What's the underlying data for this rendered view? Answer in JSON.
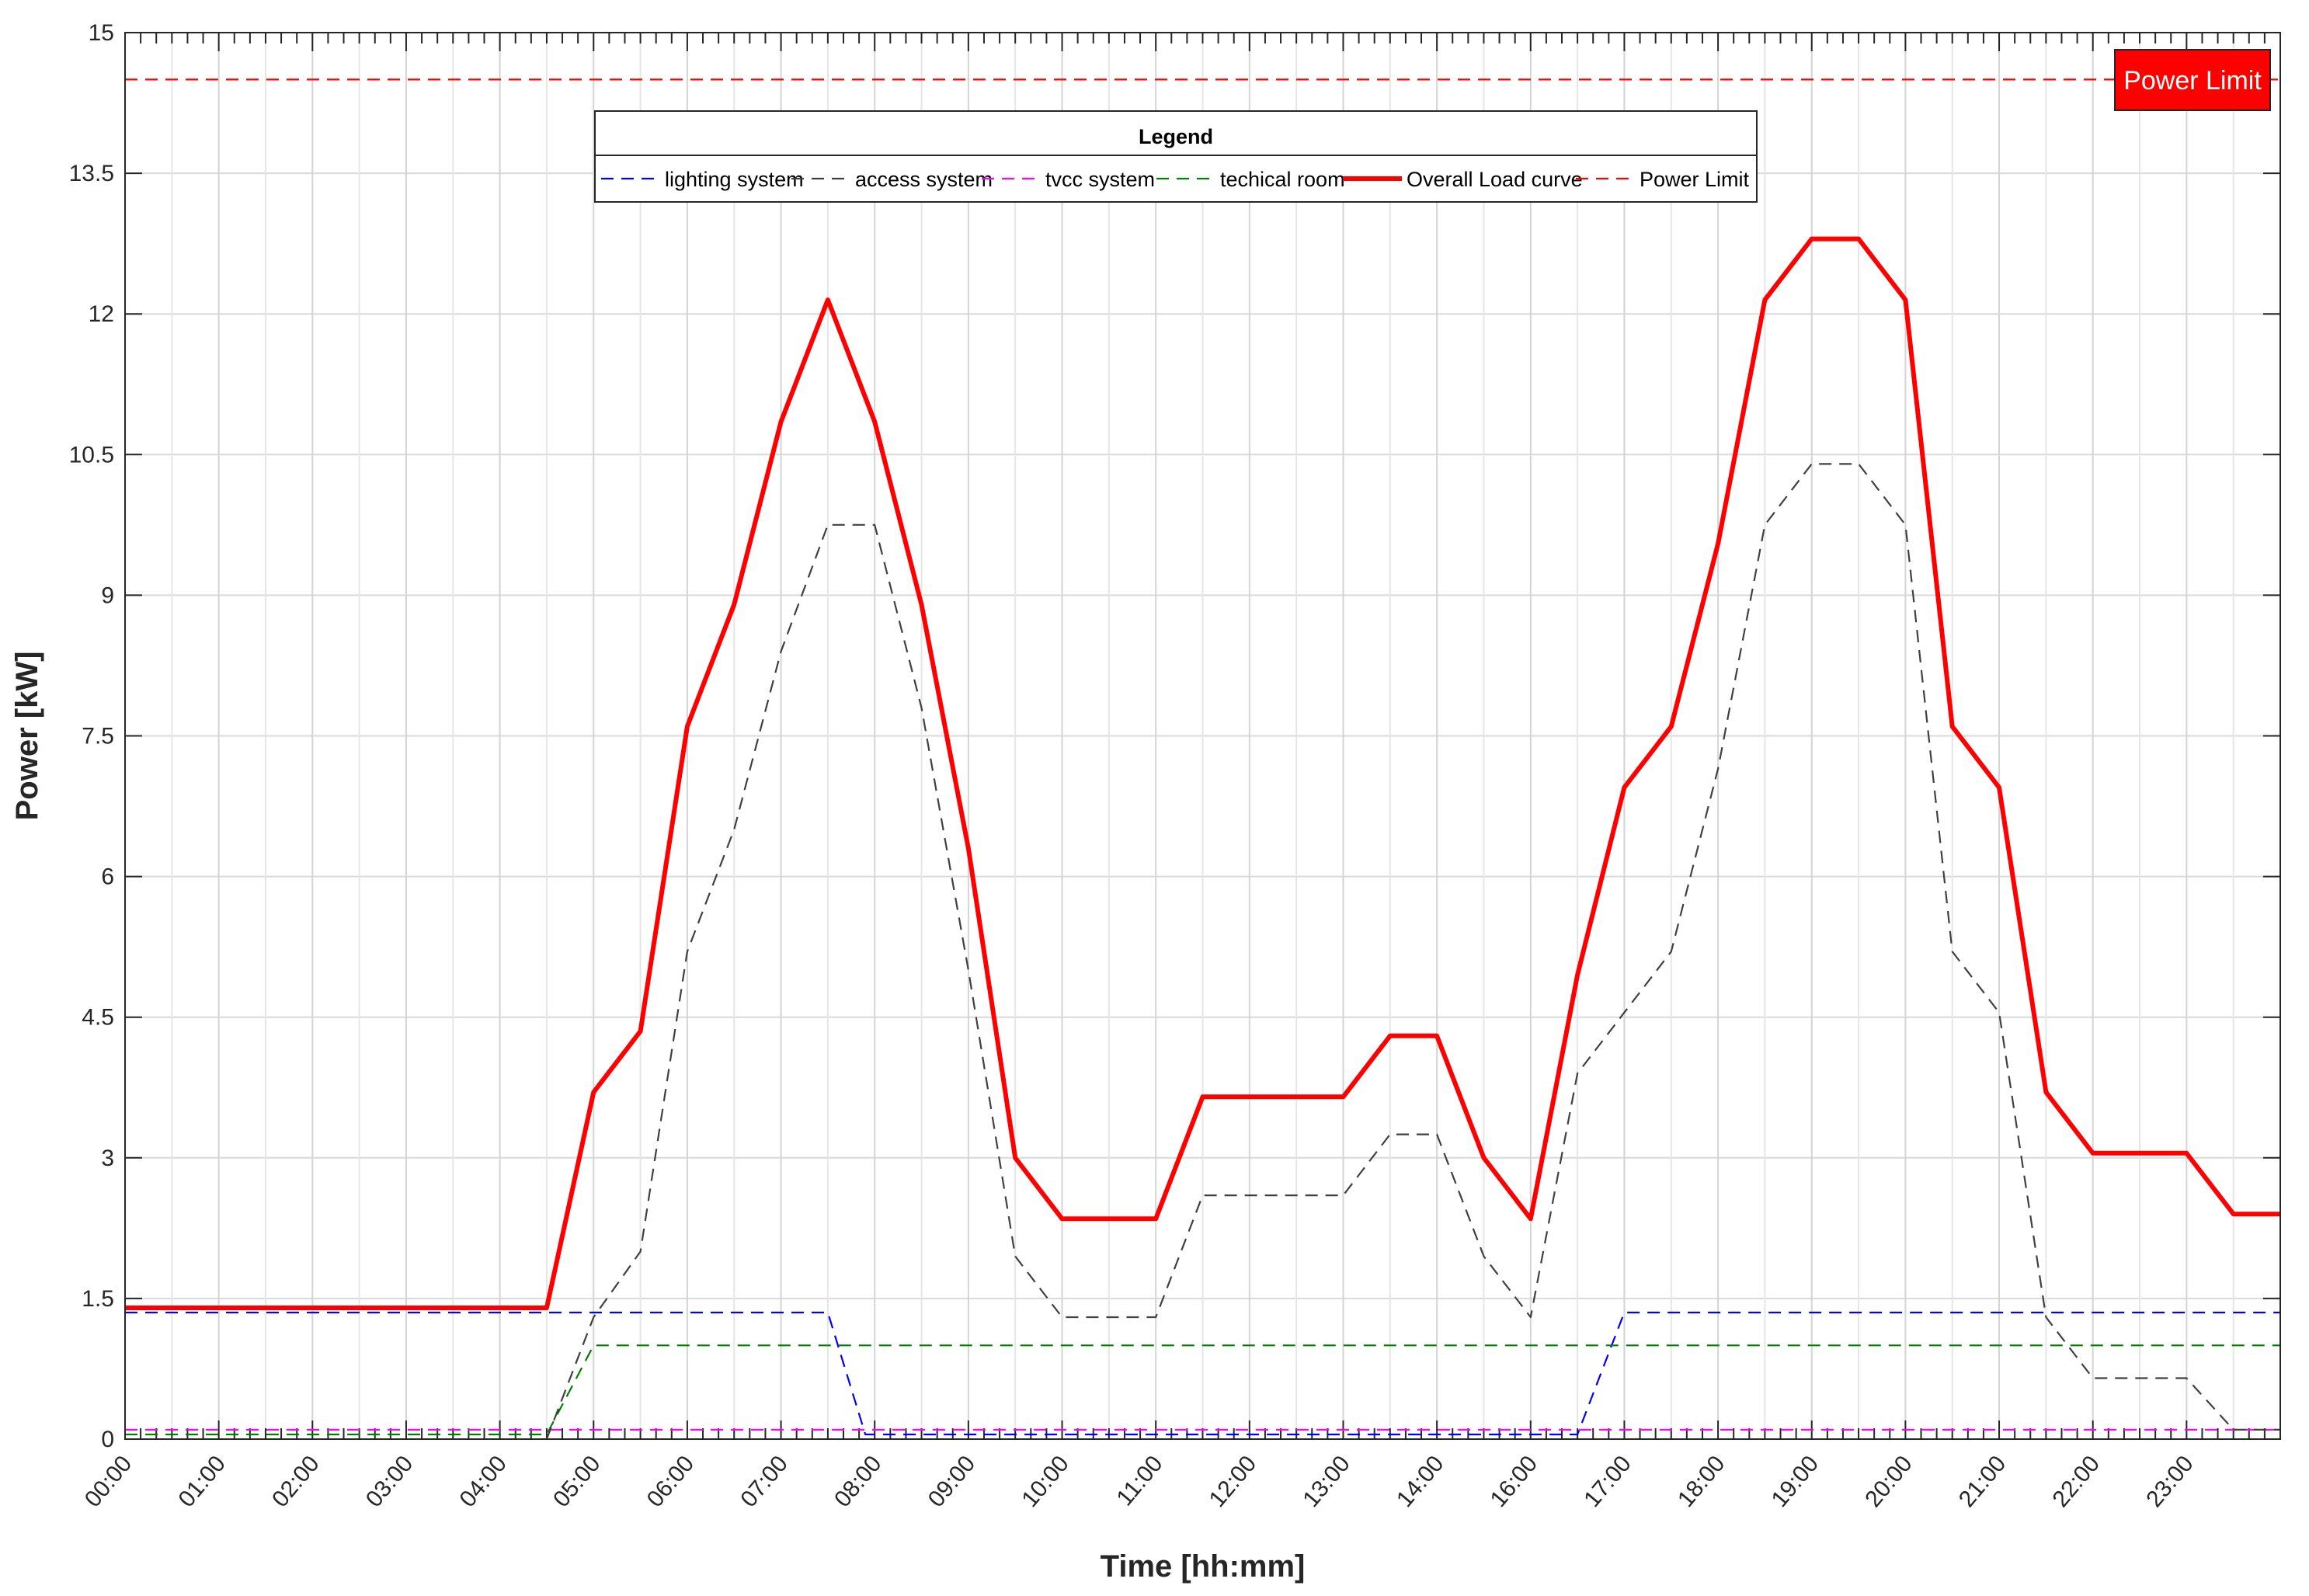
{
  "chart_data": {
    "type": "line",
    "title": "",
    "xlabel": "Time [hh:mm]",
    "ylabel": "Power [kW]",
    "xlim": [
      0,
      23
    ],
    "ylim": [
      0,
      15
    ],
    "y_ticks": [
      0,
      1.5,
      3,
      4.5,
      6,
      7.5,
      9,
      10.5,
      12,
      13.5,
      15
    ],
    "y_tick_labels": [
      "0",
      "1.5",
      "3",
      "4.5",
      "6",
      "7.5",
      "9",
      "10.5",
      "12",
      "13.5",
      "15"
    ],
    "x_tick_labels": [
      "00:00",
      "01:00",
      "02:00",
      "03:00",
      "04:00",
      "05:00",
      "06:00",
      "07:00",
      "08:00",
      "09:00",
      "10:00",
      "11:00",
      "12:00",
      "13:00",
      "14:00",
      "16:00",
      "17:00",
      "18:00",
      "19:00",
      "20:00",
      "21:00",
      "22:00",
      "23:00"
    ],
    "grid": true,
    "legend": {
      "title": "Legend",
      "placement": "top-center",
      "entries": [
        "lighting system",
        "access system",
        "tvcc system",
        "techical room",
        "Overall Load curve",
        "Power Limit"
      ]
    },
    "annotation": {
      "text": "Power Limit",
      "color": "#ff0000",
      "placement": "top-right"
    },
    "series": [
      {
        "name": "lighting system",
        "color": "#0000ff",
        "style": "dashed",
        "x": [
          0,
          7.5,
          7.9,
          15.5,
          16,
          23
        ],
        "y": [
          1.35,
          1.35,
          0.05,
          0.05,
          1.35,
          1.35
        ]
      },
      {
        "name": "access system",
        "color": "#404040",
        "style": "dashed",
        "x": [
          4.5,
          5,
          5.5,
          6,
          6.5,
          7,
          7.5,
          8,
          8.5,
          9,
          9.5,
          10,
          10.5,
          11,
          11.5,
          12,
          12.5,
          13,
          13.5,
          14,
          14.5,
          15,
          15.5,
          16,
          16.5,
          17,
          17.5,
          18,
          18.5,
          19,
          19.5,
          20,
          20.5,
          21,
          21.5,
          22,
          22.5,
          23
        ],
        "y": [
          0,
          1.3,
          2,
          5.2,
          6.5,
          8.4,
          9.75,
          9.75,
          7.8,
          5,
          1.95,
          1.3,
          1.3,
          1.3,
          2.6,
          2.6,
          2.6,
          2.6,
          3.25,
          3.25,
          1.95,
          1.3,
          3.9,
          4.55,
          5.2,
          7.15,
          9.75,
          10.4,
          10.4,
          9.75,
          5.2,
          4.55,
          1.3,
          0.65,
          0.65,
          0.65,
          0.1,
          0.1
        ]
      },
      {
        "name": "tvcc system",
        "color": "#ff00ff",
        "style": "dashed",
        "x": [
          0,
          23
        ],
        "y": [
          0.1,
          0.1
        ]
      },
      {
        "name": "techical room",
        "color": "#007f00",
        "style": "dashed",
        "x": [
          0,
          4.5,
          5,
          23
        ],
        "y": [
          0.05,
          0.05,
          1,
          1
        ]
      },
      {
        "name": "Overall Load curve",
        "color": "#ff0000",
        "style": "solid",
        "x": [
          0,
          4.5,
          5,
          5.5,
          6,
          6.5,
          7,
          7.5,
          8,
          8.5,
          9,
          9.5,
          10,
          10.5,
          11,
          11.5,
          12,
          12.5,
          13,
          13.5,
          14,
          14.5,
          15,
          15.5,
          16,
          16.5,
          17,
          17.5,
          18,
          18.5,
          19,
          19.5,
          20,
          20.5,
          21,
          21.5,
          22,
          22.5,
          23
        ],
        "y": [
          1.4,
          1.4,
          3.7,
          4.35,
          7.6,
          8.9,
          10.85,
          12.15,
          10.85,
          8.9,
          6.3,
          3,
          2.35,
          2.35,
          2.35,
          3.65,
          3.65,
          3.65,
          3.65,
          4.3,
          4.3,
          3,
          2.35,
          4.95,
          6.95,
          7.6,
          9.55,
          12.15,
          12.8,
          12.8,
          12.15,
          7.6,
          6.95,
          3.7,
          3.05,
          3.05,
          3.05,
          2.4,
          2.4
        ]
      },
      {
        "name": "Power Limit",
        "color": "#ff0000",
        "style": "dashed-thin",
        "x": [
          0,
          23
        ],
        "y": [
          14.5,
          14.5
        ]
      }
    ]
  }
}
